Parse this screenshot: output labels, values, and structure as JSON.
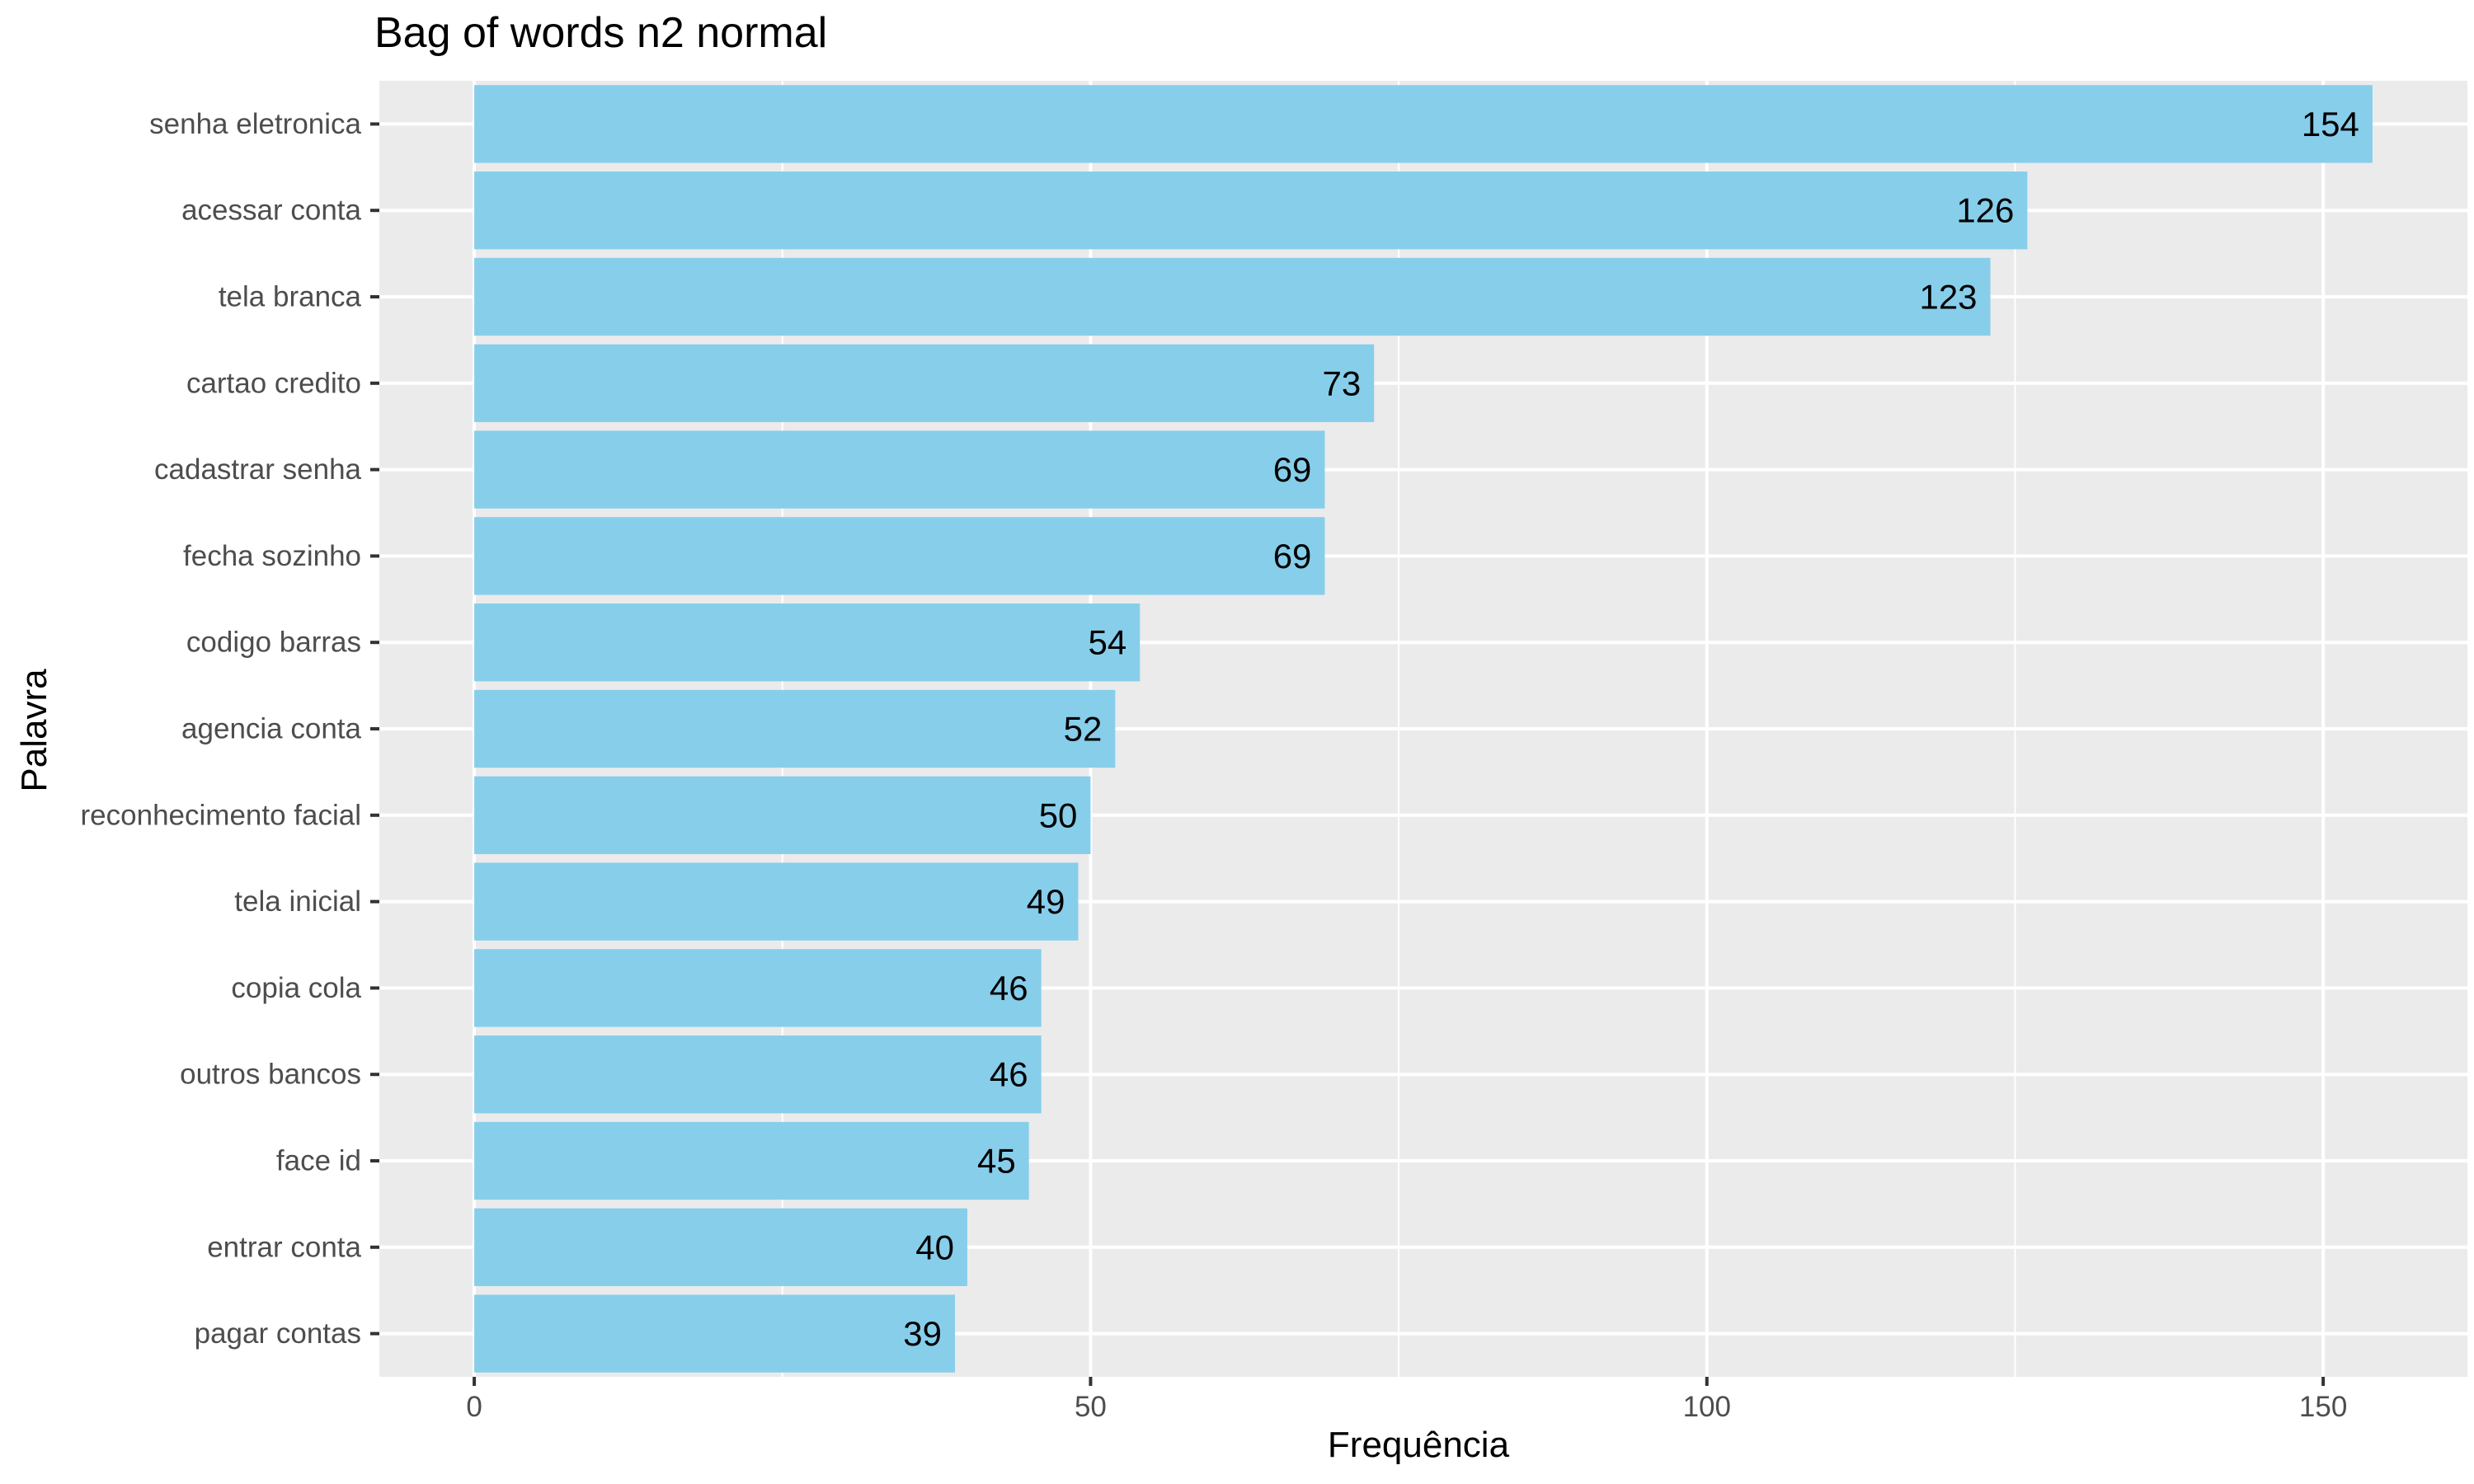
{
  "chart_data": {
    "type": "bar",
    "orientation": "horizontal",
    "title": "Bag of words n2 normal",
    "xlabel": "Frequência",
    "ylabel": "Palavra",
    "categories": [
      "senha eletronica",
      "acessar conta",
      "tela branca",
      "cartao credito",
      "cadastrar senha",
      "fecha sozinho",
      "codigo barras",
      "agencia conta",
      "reconhecimento facial",
      "tela inicial",
      "copia cola",
      "outros bancos",
      "face id",
      "entrar conta",
      "pagar contas"
    ],
    "values": [
      154,
      126,
      123,
      73,
      69,
      69,
      54,
      52,
      50,
      49,
      46,
      46,
      45,
      40,
      39
    ],
    "xlim": [
      -7.7,
      161.7
    ],
    "xticks": [
      0,
      50,
      100,
      150
    ],
    "grid": true,
    "data_labels": true,
    "colors": {
      "bar": "#87CEEB",
      "panel": "#EBEBEB",
      "grid": "#FFFFFF",
      "text": "#000000",
      "tick_text": "#4D4D4D"
    }
  }
}
